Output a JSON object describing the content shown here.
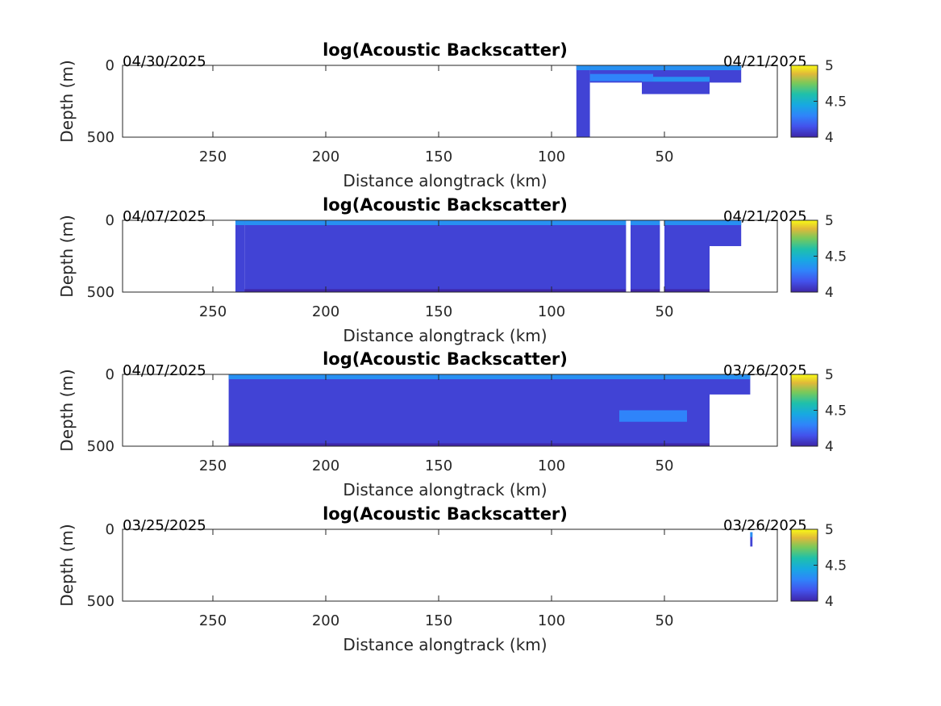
{
  "chart_data": [
    {
      "type": "heatmap",
      "title": "log(Acoustic Backscatter)",
      "xlabel": "Distance alongtrack (km)",
      "ylabel": "Depth (m)",
      "xlim": [
        290,
        0
      ],
      "ylim": [
        0,
        500
      ],
      "x_reversed": true,
      "y_reversed": true,
      "xticks": [
        250,
        200,
        150,
        100,
        50
      ],
      "yticks": [
        0,
        500
      ],
      "clim": [
        4,
        5
      ],
      "cticks": [
        4,
        4.5,
        5
      ],
      "colormap": "parula",
      "start_date_label": "04/30/2025",
      "end_date_label": "04/21/2025",
      "coverage": [
        {
          "x_from": 89,
          "x_to": 83,
          "depth_top": 0,
          "depth_bottom": 500
        },
        {
          "x_from": 83,
          "x_to": 16,
          "depth_top": 0,
          "depth_bottom": 120
        },
        {
          "x_from": 60,
          "x_to": 30,
          "depth_top": 80,
          "depth_bottom": 200
        }
      ],
      "patches": [
        {
          "x_from": 83,
          "x_to": 55,
          "depth_top": 60,
          "depth_bottom": 110,
          "value": 4.3
        }
      ],
      "gaps": []
    },
    {
      "type": "heatmap",
      "title": "log(Acoustic Backscatter)",
      "xlabel": "Distance alongtrack (km)",
      "ylabel": "Depth (m)",
      "xlim": [
        290,
        0
      ],
      "ylim": [
        0,
        500
      ],
      "x_reversed": true,
      "y_reversed": true,
      "xticks": [
        250,
        200,
        150,
        100,
        50
      ],
      "yticks": [
        0,
        500
      ],
      "clim": [
        4,
        5
      ],
      "cticks": [
        4,
        4.5,
        5
      ],
      "colormap": "parula",
      "start_date_label": "04/07/2025",
      "end_date_label": "04/21/2025",
      "coverage": [
        {
          "x_from": 240,
          "x_to": 236,
          "depth_top": 0,
          "depth_bottom": 500
        },
        {
          "x_from": 236,
          "x_to": 30,
          "depth_top": 0,
          "depth_bottom": 500
        },
        {
          "x_from": 30,
          "x_to": 16,
          "depth_top": 0,
          "depth_bottom": 180
        }
      ],
      "patches": [
        {
          "x_from": 236,
          "x_to": 30,
          "depth_top": 480,
          "depth_bottom": 500,
          "value": 3.95
        }
      ],
      "gaps": [
        {
          "x_from": 67,
          "x_to": 65
        },
        {
          "x_from": 52,
          "x_to": 50
        }
      ]
    },
    {
      "type": "heatmap",
      "title": "log(Acoustic Backscatter)",
      "xlabel": "Distance alongtrack (km)",
      "ylabel": "Depth (m)",
      "xlim": [
        290,
        0
      ],
      "ylim": [
        0,
        500
      ],
      "x_reversed": true,
      "y_reversed": true,
      "xticks": [
        250,
        200,
        150,
        100,
        50
      ],
      "yticks": [
        0,
        500
      ],
      "clim": [
        4,
        5
      ],
      "cticks": [
        4,
        4.5,
        5
      ],
      "colormap": "parula",
      "start_date_label": "04/07/2025",
      "end_date_label": "03/26/2025",
      "coverage": [
        {
          "x_from": 243,
          "x_to": 30,
          "depth_top": 0,
          "depth_bottom": 500
        },
        {
          "x_from": 30,
          "x_to": 12,
          "depth_top": 0,
          "depth_bottom": 140
        }
      ],
      "patches": [
        {
          "x_from": 243,
          "x_to": 30,
          "depth_top": 480,
          "depth_bottom": 500,
          "value": 3.95
        },
        {
          "x_from": 70,
          "x_to": 40,
          "depth_top": 250,
          "depth_bottom": 330,
          "value": 4.3
        }
      ],
      "gaps": []
    },
    {
      "type": "heatmap",
      "title": "log(Acoustic Backscatter)",
      "xlabel": "Distance alongtrack (km)",
      "ylabel": "Depth (m)",
      "xlim": [
        290,
        0
      ],
      "ylim": [
        0,
        500
      ],
      "x_reversed": true,
      "y_reversed": true,
      "xticks": [
        250,
        200,
        150,
        100,
        50
      ],
      "yticks": [
        0,
        500
      ],
      "clim": [
        4,
        5
      ],
      "cticks": [
        4,
        4.5,
        5
      ],
      "colormap": "parula",
      "start_date_label": "03/25/2025",
      "end_date_label": "03/26/2025",
      "coverage": [
        {
          "x_from": 12,
          "x_to": 11,
          "depth_top": 20,
          "depth_bottom": 120
        }
      ],
      "patches": [],
      "gaps": []
    }
  ]
}
